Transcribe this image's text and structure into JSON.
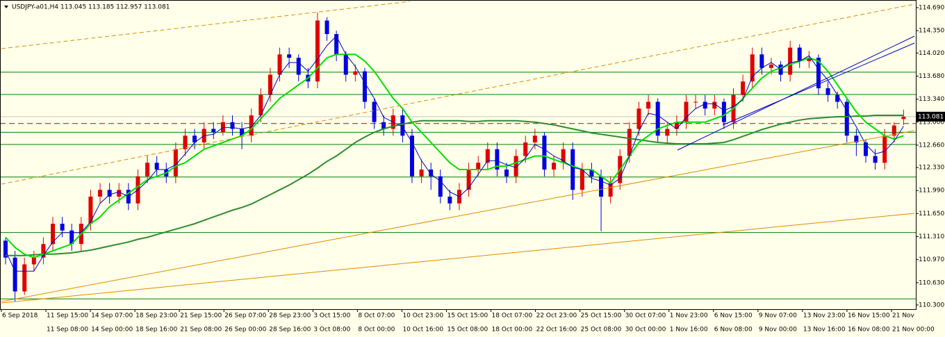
{
  "chart_data": {
    "type": "candlestick",
    "title": "USDJPY-a01,H4  113.045 113.185 112.957 113.081",
    "ylim": [
      110.238,
      114.803
    ],
    "yticks": [
      {
        "value": 114.69,
        "label": "114.690"
      },
      {
        "value": 114.35,
        "label": "114.350"
      },
      {
        "value": 114.02,
        "label": "114.020"
      },
      {
        "value": 113.68,
        "label": "113.680"
      },
      {
        "value": 113.34,
        "label": "113.340"
      },
      {
        "value": 113.0,
        "label": "113.000"
      },
      {
        "value": 112.66,
        "label": "112.660"
      },
      {
        "value": 112.33,
        "label": "112.330"
      },
      {
        "value": 111.99,
        "label": "111.990"
      },
      {
        "value": 111.65,
        "label": "111.650"
      },
      {
        "value": 111.31,
        "label": "111.310"
      },
      {
        "value": 110.97,
        "label": "110.970"
      },
      {
        "value": 110.63,
        "label": "110.630"
      },
      {
        "value": 110.3,
        "label": "110.300"
      }
    ],
    "last_price": 113.081,
    "up_color": "#e00000",
    "down_color": "#0000e0",
    "open": [
      111.25,
      111.0,
      110.5,
      110.9,
      111.0,
      111.2,
      111.5,
      111.4,
      111.2,
      111.5,
      111.9,
      112.0,
      111.9,
      112.0,
      111.8,
      112.2,
      112.4,
      112.3,
      112.2,
      112.6,
      112.8,
      112.7,
      112.9,
      112.85,
      113.0,
      112.9,
      112.8,
      113.1,
      113.4,
      113.7,
      114.0,
      113.95,
      113.7,
      113.6,
      114.5,
      114.3,
      114.0,
      113.7,
      113.75,
      113.3,
      113.0,
      112.9,
      113.1,
      112.8,
      112.2,
      112.3,
      112.2,
      111.9,
      111.8,
      112.0,
      112.3,
      112.4,
      112.6,
      112.3,
      112.2,
      112.5,
      112.7,
      112.8,
      112.3,
      112.4,
      112.6,
      112.0,
      112.3,
      112.2,
      111.9,
      112.1,
      112.5,
      112.9,
      113.2,
      113.3,
      112.8,
      112.9,
      113.0,
      113.3,
      113.3,
      113.2,
      113.3,
      113.0,
      113.4,
      113.6,
      114.0,
      113.8,
      113.85,
      113.7,
      114.1,
      113.9,
      113.95,
      113.5,
      113.4,
      113.3,
      112.8,
      112.7,
      112.5,
      112.4,
      112.8,
      113.045
    ],
    "high": [
      111.3,
      111.1,
      111.0,
      111.1,
      111.3,
      111.6,
      111.6,
      111.5,
      111.6,
      112.0,
      112.1,
      112.1,
      112.1,
      112.1,
      112.3,
      112.5,
      112.5,
      112.4,
      112.7,
      112.9,
      112.9,
      113.0,
      113.0,
      113.1,
      113.1,
      113.0,
      113.2,
      113.5,
      113.8,
      114.1,
      114.1,
      114.0,
      113.8,
      114.62,
      114.55,
      114.35,
      114.05,
      113.85,
      113.8,
      113.35,
      113.1,
      113.2,
      113.2,
      112.9,
      112.45,
      112.4,
      112.3,
      112.0,
      112.1,
      112.4,
      112.5,
      112.7,
      112.7,
      112.4,
      112.6,
      112.8,
      112.9,
      112.85,
      112.5,
      112.7,
      112.7,
      112.4,
      112.4,
      112.3,
      112.2,
      112.6,
      113.0,
      113.3,
      113.4,
      113.35,
      113.0,
      113.1,
      113.4,
      113.4,
      113.4,
      113.4,
      113.35,
      113.5,
      113.7,
      114.1,
      114.1,
      113.95,
      113.9,
      114.2,
      114.15,
      114.05,
      114.0,
      113.6,
      113.45,
      113.35,
      112.9,
      112.75,
      112.6,
      112.9,
      113.0,
      113.185
    ],
    "low": [
      110.9,
      110.35,
      110.45,
      110.8,
      110.9,
      111.1,
      111.3,
      111.1,
      111.1,
      111.4,
      111.8,
      111.8,
      111.8,
      111.7,
      111.7,
      112.1,
      112.2,
      112.1,
      112.1,
      112.5,
      112.6,
      112.6,
      112.75,
      112.8,
      112.8,
      112.6,
      112.7,
      113.0,
      113.3,
      113.6,
      113.8,
      113.6,
      113.5,
      113.5,
      114.2,
      113.9,
      113.6,
      113.6,
      113.2,
      112.9,
      112.8,
      112.8,
      112.7,
      112.1,
      112.1,
      112.0,
      111.8,
      111.7,
      111.7,
      111.9,
      112.2,
      112.3,
      112.2,
      112.1,
      112.1,
      112.4,
      112.6,
      112.2,
      112.2,
      112.3,
      111.85,
      111.9,
      112.1,
      111.39,
      111.8,
      112.0,
      112.4,
      112.8,
      113.1,
      112.7,
      112.7,
      112.8,
      112.9,
      113.2,
      113.1,
      113.1,
      112.9,
      112.9,
      113.3,
      113.5,
      113.7,
      113.7,
      113.6,
      113.6,
      113.8,
      113.8,
      113.4,
      113.3,
      113.2,
      112.7,
      112.5,
      112.4,
      112.3,
      112.3,
      112.7,
      112.957
    ],
    "close": [
      111.0,
      110.5,
      110.9,
      111.0,
      111.2,
      111.5,
      111.4,
      111.2,
      111.5,
      111.9,
      112.0,
      111.9,
      112.0,
      111.8,
      112.2,
      112.4,
      112.3,
      112.2,
      112.6,
      112.8,
      112.7,
      112.9,
      112.85,
      113.0,
      112.9,
      112.8,
      113.1,
      113.4,
      113.7,
      114.0,
      113.95,
      113.7,
      113.6,
      114.5,
      114.3,
      114.0,
      113.7,
      113.75,
      113.3,
      113.0,
      112.9,
      113.1,
      112.8,
      112.2,
      112.3,
      112.2,
      111.9,
      111.8,
      112.0,
      112.3,
      112.4,
      112.6,
      112.3,
      112.2,
      112.5,
      112.7,
      112.8,
      112.3,
      112.4,
      112.6,
      112.0,
      112.3,
      112.2,
      111.9,
      112.1,
      112.5,
      112.9,
      113.2,
      113.3,
      112.8,
      112.9,
      113.0,
      113.3,
      113.3,
      113.2,
      113.3,
      113.0,
      113.4,
      113.6,
      114.0,
      113.8,
      113.85,
      113.7,
      114.1,
      113.9,
      113.95,
      113.5,
      113.4,
      113.3,
      112.8,
      112.7,
      112.5,
      112.4,
      112.8,
      112.95,
      113.081
    ],
    "moving_averages": [
      {
        "color": "#2e8b2e",
        "width": 2,
        "values": [
          111.03,
          111.03,
          111.03,
          111.04,
          111.05,
          111.05,
          111.06,
          111.07,
          111.09,
          111.11,
          111.14,
          111.17,
          111.2,
          111.23,
          111.27,
          111.3,
          111.34,
          111.38,
          111.42,
          111.46,
          111.5,
          111.55,
          111.6,
          111.65,
          111.7,
          111.74,
          111.79,
          111.86,
          111.93,
          112.0,
          112.07,
          112.15,
          112.23,
          112.32,
          112.42,
          112.5,
          112.6,
          112.7,
          112.78,
          112.85,
          112.9,
          112.94,
          112.97,
          113.0,
          113.02,
          113.02,
          113.02,
          113.02,
          113.02,
          113.01,
          113.01,
          113.02,
          113.02,
          113.02,
          113.02,
          113.01,
          113.0,
          112.98,
          112.96,
          112.93,
          112.9,
          112.87,
          112.84,
          112.82,
          112.8,
          112.78,
          112.76,
          112.74,
          112.72,
          112.7,
          112.69,
          112.68,
          112.68,
          112.68,
          112.68,
          112.69,
          112.7,
          112.74,
          112.79,
          112.84,
          112.89,
          112.93,
          112.97,
          113.0,
          113.03,
          113.05,
          113.06,
          113.07,
          113.08,
          113.08,
          113.09,
          113.09,
          113.1,
          113.1,
          113.1,
          113.1
        ]
      },
      {
        "color": "#00e000",
        "width": 2,
        "values": [
          111.3,
          111.15,
          111.05,
          111.0,
          111.05,
          111.1,
          111.15,
          111.2,
          111.35,
          111.5,
          111.6,
          111.75,
          111.85,
          111.95,
          112.05,
          112.15,
          112.2,
          112.25,
          112.35,
          112.4,
          112.5,
          112.6,
          112.65,
          112.7,
          112.75,
          112.8,
          112.9,
          113.05,
          113.2,
          113.35,
          113.45,
          113.55,
          113.65,
          113.8,
          113.95,
          114.0,
          114.0,
          114.0,
          113.9,
          113.75,
          113.55,
          113.35,
          113.2,
          113.0,
          112.85,
          112.7,
          112.55,
          112.4,
          112.3,
          112.3,
          112.3,
          112.3,
          112.35,
          112.35,
          112.4,
          112.45,
          112.5,
          112.5,
          112.45,
          112.4,
          112.35,
          112.3,
          112.3,
          112.2,
          112.1,
          112.3,
          112.5,
          112.7,
          112.8,
          112.9,
          112.95,
          113.0,
          113.0,
          113.0,
          113.0,
          113.05,
          113.1,
          113.2,
          113.35,
          113.5,
          113.65,
          113.75,
          113.8,
          113.85,
          113.9,
          113.95,
          113.9,
          113.75,
          113.55,
          113.35,
          113.15,
          113.0,
          112.9,
          112.8,
          112.75,
          112.8
        ]
      },
      {
        "color": "#0000cc",
        "width": 1,
        "values": [
          111.1,
          110.8,
          110.8,
          110.8,
          111.03,
          111.23,
          111.37,
          111.37,
          111.37,
          111.53,
          111.8,
          111.93,
          111.97,
          111.9,
          112.0,
          112.13,
          112.3,
          112.3,
          112.37,
          112.53,
          112.7,
          112.8,
          112.82,
          112.92,
          112.92,
          112.9,
          112.93,
          113.1,
          113.4,
          113.7,
          113.88,
          113.88,
          113.75,
          113.93,
          114.13,
          114.27,
          114.0,
          113.82,
          113.58,
          113.35,
          113.07,
          113.0,
          112.93,
          112.7,
          112.43,
          112.23,
          112.13,
          111.97,
          111.9,
          112.03,
          112.23,
          112.43,
          112.43,
          112.37,
          112.33,
          112.47,
          112.67,
          112.6,
          112.5,
          112.43,
          112.33,
          112.3,
          112.17,
          112.13,
          112.07,
          112.17,
          112.5,
          112.87,
          113.13,
          113.1,
          113.0,
          112.9,
          113.07,
          113.2,
          113.27,
          113.27,
          113.17,
          113.23,
          113.33,
          113.67,
          113.8,
          113.88,
          113.78,
          113.88,
          113.9,
          113.98,
          113.78,
          113.62,
          113.4,
          113.17,
          112.93,
          112.67,
          112.53,
          112.57,
          112.72,
          112.94
        ]
      }
    ],
    "levels": [
      113.737,
      113.408,
      112.85,
      112.67,
      112.19,
      111.37,
      110.39
    ],
    "level_color": "#008000",
    "dashed_level": 112.98,
    "dashed_level_color": "#c00000",
    "x_labels_top": [
      "6 Sep 2018",
      "11 Sep 15:00",
      "14 Sep 07:00",
      "18 Sep 23:00",
      "21 Sep 15:00",
      "26 Sep 07:00",
      "28 Sep 23:00",
      "3 Oct 15:00",
      "8 Oct 07:00",
      "10 Oct 23:00",
      "15 Oct 15:00",
      "18 Oct 07:00",
      "22 Oct 23:00",
      "25 Oct 15:00",
      "30 Oct 07:00",
      "1 Nov 23:00",
      "6 Nov 15:00",
      "9 Nov 07:00",
      "13 Nov 23:00",
      "16 Nov 15:00",
      "21 Nov"
    ],
    "x_labels_bottom": [
      "11 Sep 08:00",
      "14 Sep 00:00",
      "18 Sep 16:00",
      "21 Sep 08:00",
      "26 Sep 00:00",
      "28 Sep 16:00",
      "3 Oct 08:00",
      "8 Oct 00:00",
      "10 Oct 16:00",
      "15 Oct 08:00",
      "18 Oct 00:00",
      "22 Oct 16:00",
      "25 Oct 08:00",
      "30 Oct 00:00",
      "1 Nov 16:00",
      "6 Nov 08:00",
      "9 Nov 00:00",
      "13 Nov 16:00",
      "16 Nov 08:00",
      "21 Nov 00:00"
    ]
  }
}
